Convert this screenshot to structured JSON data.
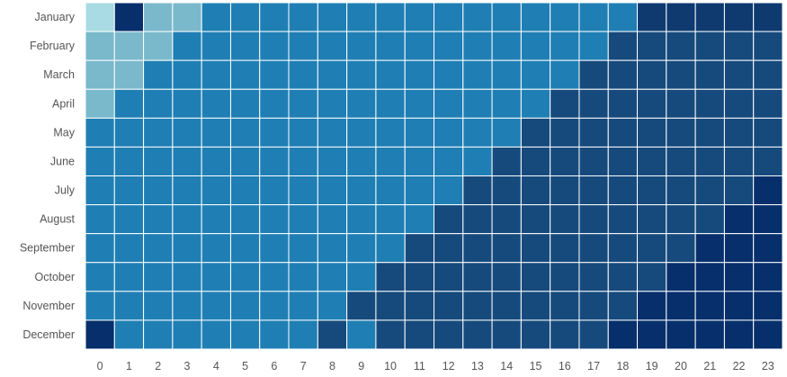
{
  "chart_data": {
    "type": "heatmap",
    "title": "",
    "xlabel": "",
    "ylabel": "",
    "x_categories": [
      "0",
      "1",
      "2",
      "3",
      "4",
      "5",
      "6",
      "7",
      "8",
      "9",
      "10",
      "11",
      "12",
      "13",
      "14",
      "15",
      "16",
      "17",
      "18",
      "19",
      "20",
      "21",
      "22",
      "23"
    ],
    "y_categories": [
      "January",
      "February",
      "March",
      "April",
      "May",
      "June",
      "July",
      "August",
      "September",
      "October",
      "November",
      "December"
    ],
    "color_scale": {
      "0": "#a8dbe3",
      "1": "#7ab8cc",
      "2": "#1f7fb4",
      "3": "#174a7c",
      "4": "#0e3a70",
      "5": "#062f6b"
    },
    "values": [
      [
        0,
        5,
        1,
        1,
        2,
        2,
        2,
        2,
        2,
        2,
        2,
        2,
        2,
        2,
        2,
        2,
        2,
        2,
        2,
        4,
        4,
        4,
        4,
        4
      ],
      [
        1,
        1,
        1,
        2,
        2,
        2,
        2,
        2,
        2,
        2,
        2,
        2,
        2,
        2,
        2,
        2,
        2,
        2,
        3,
        3,
        3,
        3,
        3,
        3
      ],
      [
        1,
        1,
        2,
        2,
        2,
        2,
        2,
        2,
        2,
        2,
        2,
        2,
        2,
        2,
        2,
        2,
        2,
        3,
        3,
        3,
        3,
        3,
        3,
        3
      ],
      [
        1,
        2,
        2,
        2,
        2,
        2,
        2,
        2,
        2,
        2,
        2,
        2,
        2,
        2,
        2,
        2,
        3,
        3,
        3,
        3,
        3,
        3,
        3,
        3
      ],
      [
        2,
        2,
        2,
        2,
        2,
        2,
        2,
        2,
        2,
        2,
        2,
        2,
        2,
        2,
        2,
        3,
        3,
        3,
        3,
        3,
        3,
        3,
        3,
        3
      ],
      [
        2,
        2,
        2,
        2,
        2,
        2,
        2,
        2,
        2,
        2,
        2,
        2,
        2,
        2,
        3,
        3,
        3,
        3,
        3,
        3,
        3,
        3,
        3,
        3
      ],
      [
        2,
        2,
        2,
        2,
        2,
        2,
        2,
        2,
        2,
        2,
        2,
        2,
        2,
        3,
        3,
        3,
        3,
        3,
        3,
        3,
        3,
        3,
        3,
        5
      ],
      [
        2,
        2,
        2,
        2,
        2,
        2,
        2,
        2,
        2,
        2,
        2,
        2,
        3,
        3,
        3,
        3,
        3,
        3,
        3,
        3,
        3,
        3,
        5,
        5
      ],
      [
        2,
        2,
        2,
        2,
        2,
        2,
        2,
        2,
        2,
        2,
        2,
        3,
        3,
        3,
        3,
        3,
        3,
        3,
        3,
        3,
        3,
        5,
        5,
        5
      ],
      [
        2,
        2,
        2,
        2,
        2,
        2,
        2,
        2,
        2,
        2,
        3,
        3,
        3,
        3,
        3,
        3,
        3,
        3,
        3,
        3,
        5,
        5,
        5,
        5
      ],
      [
        2,
        2,
        2,
        2,
        2,
        2,
        2,
        2,
        2,
        3,
        3,
        3,
        3,
        3,
        3,
        3,
        3,
        3,
        3,
        5,
        5,
        5,
        5,
        5
      ],
      [
        5,
        2,
        2,
        2,
        2,
        2,
        2,
        2,
        3,
        2,
        3,
        3,
        3,
        3,
        3,
        3,
        3,
        3,
        5,
        5,
        5,
        5,
        5,
        5
      ]
    ],
    "grid": false,
    "legend": "none"
  }
}
